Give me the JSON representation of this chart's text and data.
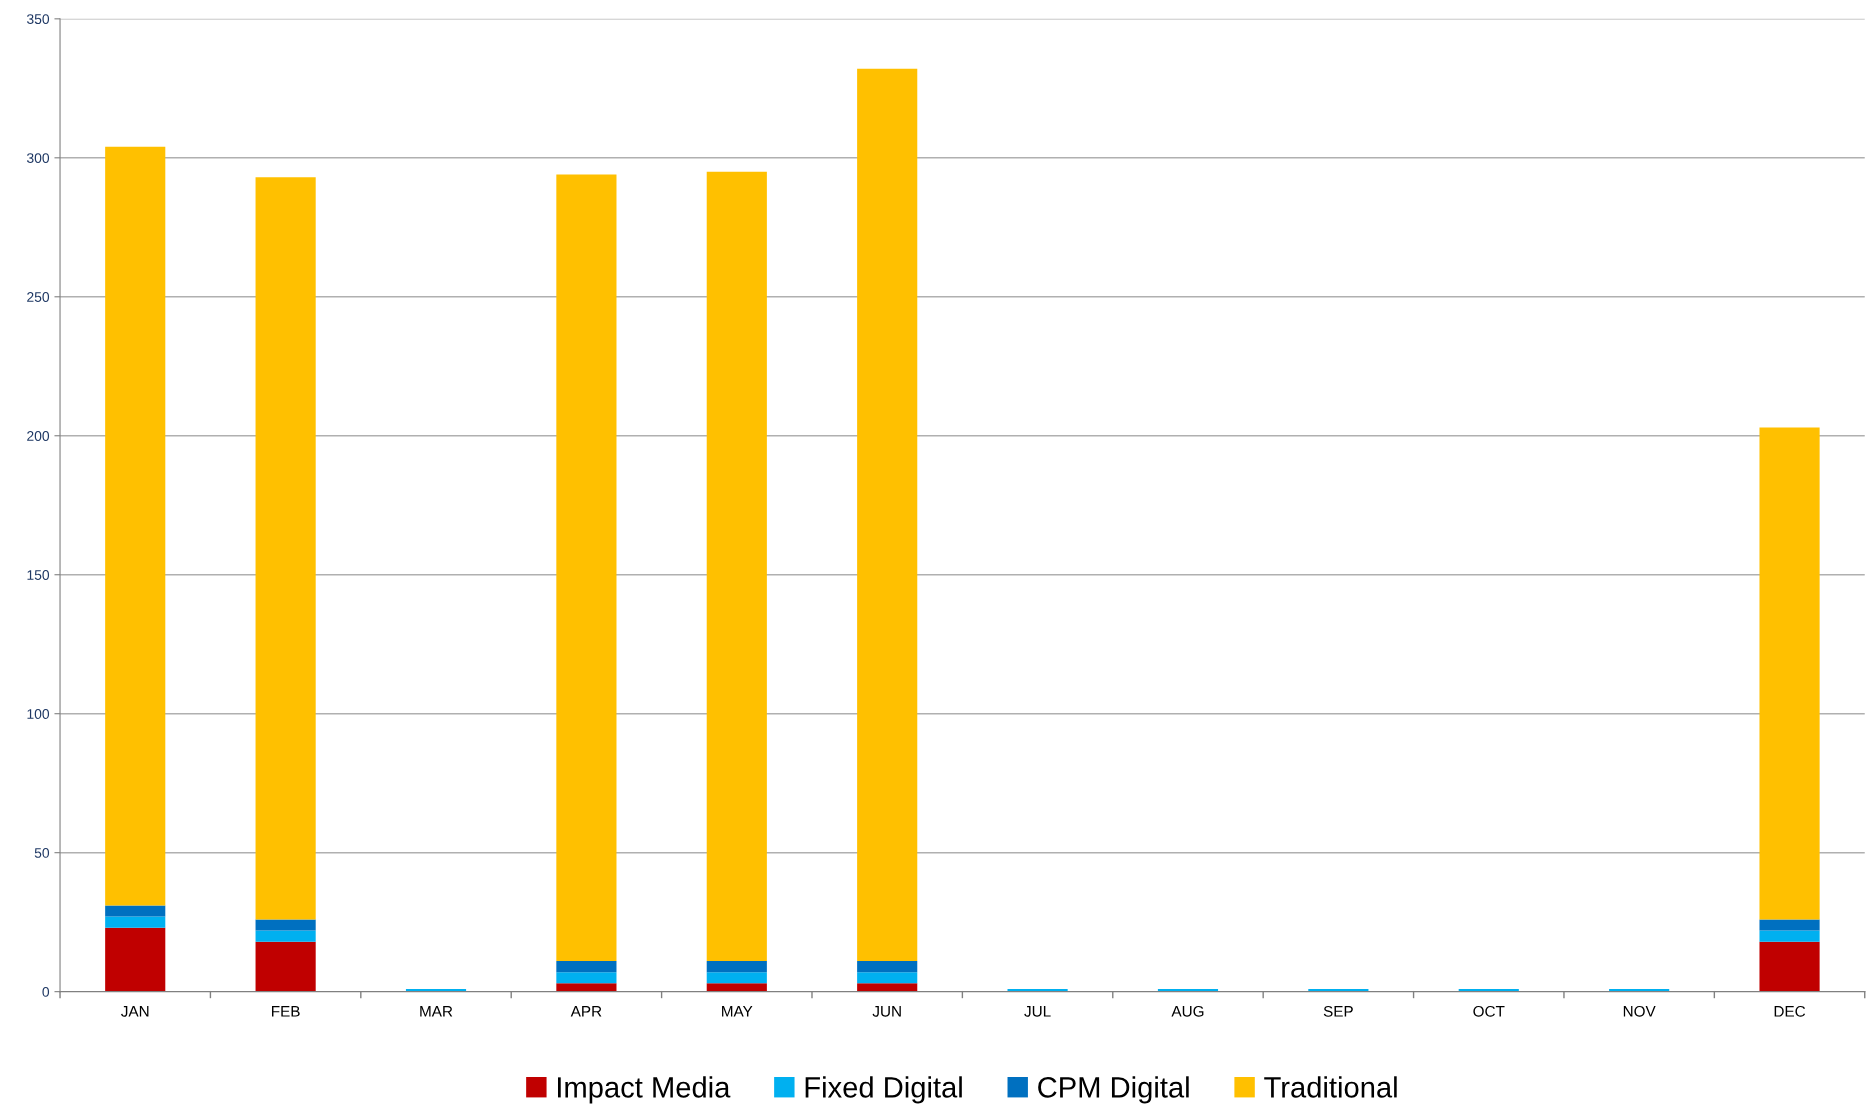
{
  "chart_data": {
    "type": "bar",
    "stacked": true,
    "categories": [
      "JAN",
      "FEB",
      "MAR",
      "APR",
      "MAY",
      "JUN",
      "JUL",
      "AUG",
      "SEP",
      "OCT",
      "NOV",
      "DEC"
    ],
    "series": [
      {
        "name": "Impact Media",
        "color": "#c00000",
        "values": [
          23,
          18,
          0,
          3,
          3,
          3,
          0,
          0,
          0,
          0,
          0,
          18
        ]
      },
      {
        "name": "Fixed Digital",
        "color": "#00b0f0",
        "values": [
          4,
          4,
          1,
          4,
          4,
          4,
          1,
          1,
          1,
          1,
          1,
          4
        ]
      },
      {
        "name": "CPM Digital",
        "color": "#0070c0",
        "values": [
          4,
          4,
          0,
          4,
          4,
          4,
          0,
          0,
          0,
          0,
          0,
          4
        ]
      },
      {
        "name": "Traditional",
        "color": "#ffc000",
        "values": [
          273,
          267,
          0,
          283,
          284,
          321,
          0,
          0,
          0,
          0,
          0,
          177
        ]
      }
    ],
    "ylim": [
      0,
      350
    ],
    "yticks": [
      0,
      50,
      100,
      150,
      200,
      250,
      300,
      350
    ],
    "grid": "y",
    "legend": "bottom"
  }
}
